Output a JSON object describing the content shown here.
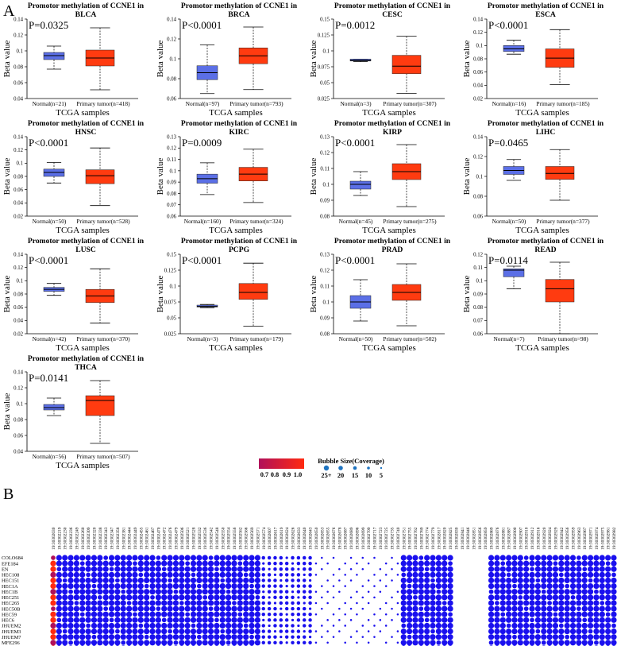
{
  "panel_labels": {
    "a": "A",
    "b": "B"
  },
  "colors": {
    "normal_box": "#5b6fe6",
    "tumor_box": "#ff3b10",
    "axis": "#000000",
    "bubble_low": "#b0105a",
    "bubble_high": "#ff2a10",
    "bubble": "#1a10ee"
  },
  "chart_data": [
    {
      "type": "box",
      "title": "Promotor methylation of CCNE1 in BLCA",
      "title_lines": [
        "Promotor methylation of CCNE1 in",
        "BLCA"
      ],
      "pvalue": "P=0.0325",
      "ylabel": "Beta value",
      "xlabel": "TCGA samples",
      "categories": [
        "Normal(n=21)",
        "Primary tumor(n=418)"
      ],
      "yticks": [
        "0.04",
        "0.06",
        "0.08",
        "0.1",
        "0.12",
        "0.14"
      ],
      "ylim": [
        0.04,
        0.14
      ],
      "boxes": [
        {
          "min": 0.077,
          "q1": 0.089,
          "median": 0.094,
          "q3": 0.098,
          "max": 0.106
        },
        {
          "min": 0.051,
          "q1": 0.081,
          "median": 0.091,
          "q3": 0.101,
          "max": 0.129
        }
      ]
    },
    {
      "type": "box",
      "title": "Promotor methylation of CCNE1 in BRCA",
      "title_lines": [
        "Promotor methylation of CCNE1 in",
        "BRCA"
      ],
      "pvalue": "P<0.0001",
      "ylabel": "Beta value",
      "xlabel": "TCGA samples",
      "categories": [
        "Normal(n=97)",
        "Primary tumor(n=793)"
      ],
      "yticks": [
        "0.06",
        "0.08",
        "0.1",
        "0.12",
        "0.14"
      ],
      "ylim": [
        0.06,
        0.14
      ],
      "boxes": [
        {
          "min": 0.065,
          "q1": 0.079,
          "median": 0.086,
          "q3": 0.093,
          "max": 0.114
        },
        {
          "min": 0.069,
          "q1": 0.095,
          "median": 0.103,
          "q3": 0.111,
          "max": 0.132
        }
      ]
    },
    {
      "type": "box",
      "title": "Promotor methylation of CCNE1 in CESC",
      "title_lines": [
        "Promotor methylation of CCNE1 in",
        "CESC"
      ],
      "pvalue": "P=0.0012",
      "ylabel": "Beta value",
      "xlabel": "TCGA samples",
      "categories": [
        "Normal(n=3)",
        "Primary tumor(n=307)"
      ],
      "yticks": [
        "0.025",
        "0.05",
        "0.075",
        "0.1",
        "0.125",
        "0.15"
      ],
      "ylim": [
        0.025,
        0.15
      ],
      "boxes": [
        {
          "min": 0.083,
          "q1": 0.084,
          "median": 0.085,
          "q3": 0.087,
          "max": 0.087
        },
        {
          "min": 0.033,
          "q1": 0.064,
          "median": 0.076,
          "q3": 0.093,
          "max": 0.123
        }
      ]
    },
    {
      "type": "box",
      "title": "Promotor methylation of CCNE1 in ESCA",
      "title_lines": [
        "Promotor methylation of CCNE1 in",
        "ESCA"
      ],
      "pvalue": "P<0.0001",
      "ylabel": "Beta value",
      "xlabel": "TCGA samples",
      "categories": [
        "Normal(n=16)",
        "Primary tumor(n=185)"
      ],
      "yticks": [
        "0.02",
        "0.04",
        "0.06",
        "0.08",
        "0.1",
        "0.12",
        "0.14"
      ],
      "ylim": [
        0.02,
        0.14
      ],
      "boxes": [
        {
          "min": 0.087,
          "q1": 0.091,
          "median": 0.095,
          "q3": 0.1,
          "max": 0.108
        },
        {
          "min": 0.041,
          "q1": 0.067,
          "median": 0.081,
          "q3": 0.095,
          "max": 0.124
        }
      ]
    },
    {
      "type": "box",
      "title": "Promotor methylation of CCNE1 in HNSC",
      "title_lines": [
        "Promotor methylation of CCNE1 in",
        "HNSC"
      ],
      "pvalue": "P<0.0001",
      "ylabel": "Beta value",
      "xlabel": "TCGA samples",
      "categories": [
        "Normal(n=50)",
        "Primary tumor(n=528)"
      ],
      "yticks": [
        "0.02",
        "0.04",
        "0.06",
        "0.08",
        "0.1",
        "0.12",
        "0.14"
      ],
      "ylim": [
        0.02,
        0.14
      ],
      "boxes": [
        {
          "min": 0.07,
          "q1": 0.08,
          "median": 0.086,
          "q3": 0.091,
          "max": 0.101
        },
        {
          "min": 0.036,
          "q1": 0.069,
          "median": 0.081,
          "q3": 0.09,
          "max": 0.123
        }
      ]
    },
    {
      "type": "box",
      "title": "Promotor methylation of CCNE1 in KIRC",
      "title_lines": [
        "Promotor methylation of CCNE1 in",
        "KIRC"
      ],
      "pvalue": "P=0.0009",
      "ylabel": "Beta value",
      "xlabel": "TCGA samples",
      "categories": [
        "Normal(n=160)",
        "Primary tumor(n=324)"
      ],
      "yticks": [
        "0.06",
        "0.07",
        "0.08",
        "0.09",
        "0.1",
        "0.11",
        "0.12",
        "0.13"
      ],
      "ylim": [
        0.06,
        0.13
      ],
      "boxes": [
        {
          "min": 0.079,
          "q1": 0.089,
          "median": 0.093,
          "q3": 0.097,
          "max": 0.107
        },
        {
          "min": 0.072,
          "q1": 0.091,
          "median": 0.097,
          "q3": 0.103,
          "max": 0.119
        }
      ]
    },
    {
      "type": "box",
      "title": "Promotor methylation of CCNE1 in KIRP",
      "title_lines": [
        "Promotor methylation of CCNE1 in",
        "KIRP"
      ],
      "pvalue": "P<0.0001",
      "ylabel": "Beta value",
      "xlabel": "TCGA samples",
      "categories": [
        "Normal(n=45)",
        "Primary tumor(n=275)"
      ],
      "yticks": [
        "0.08",
        "0.09",
        "0.1",
        "0.11",
        "0.12",
        "0.13"
      ],
      "ylim": [
        0.08,
        0.13
      ],
      "boxes": [
        {
          "min": 0.093,
          "q1": 0.097,
          "median": 0.1,
          "q3": 0.102,
          "max": 0.108
        },
        {
          "min": 0.086,
          "q1": 0.103,
          "median": 0.108,
          "q3": 0.113,
          "max": 0.125
        }
      ]
    },
    {
      "type": "box",
      "title": "Promotor methylation of CCNE1 in LIHC",
      "title_lines": [
        "Promotor methylation of CCNE1 in",
        "LIHC"
      ],
      "pvalue": "P=0.0465",
      "ylabel": "Beta value",
      "xlabel": "TCGA samples",
      "categories": [
        "Normal(n=50)",
        "Primary tumor(n=377)"
      ],
      "yticks": [
        "0.06",
        "0.08",
        "0.1",
        "0.12",
        "0.14"
      ],
      "ylim": [
        0.06,
        0.14
      ],
      "boxes": [
        {
          "min": 0.096,
          "q1": 0.102,
          "median": 0.106,
          "q3": 0.11,
          "max": 0.117
        },
        {
          "min": 0.076,
          "q1": 0.097,
          "median": 0.103,
          "q3": 0.11,
          "max": 0.127
        }
      ]
    },
    {
      "type": "box",
      "title": "Promotor methylation of CCNE1 in LUSC",
      "title_lines": [
        "Promotor methylation of CCNE1 in",
        "LUSC"
      ],
      "pvalue": "P<0.0001",
      "ylabel": "Beta value",
      "xlabel": "TCGA samples",
      "categories": [
        "Normal(n=42)",
        "Primary tumor(n=370)"
      ],
      "yticks": [
        "0.02",
        "0.04",
        "0.06",
        "0.08",
        "0.1",
        "0.12",
        "0.14"
      ],
      "ylim": [
        0.02,
        0.14
      ],
      "boxes": [
        {
          "min": 0.078,
          "q1": 0.084,
          "median": 0.087,
          "q3": 0.09,
          "max": 0.096
        },
        {
          "min": 0.036,
          "q1": 0.067,
          "median": 0.077,
          "q3": 0.087,
          "max": 0.118
        }
      ]
    },
    {
      "type": "box",
      "title": "Promotor methylation of CCNE1 in PCPG",
      "title_lines": [
        "Promotor methylation of CCNE1 in",
        "PCPG"
      ],
      "pvalue": "P<0.0001",
      "ylabel": "Beta value",
      "xlabel": "TCGA samples",
      "categories": [
        "Normal(n=3)",
        "Primary tumor(n=179)"
      ],
      "yticks": [
        "0.025",
        "0.05",
        "0.075",
        "0.1",
        "0.125",
        "0.15"
      ],
      "ylim": [
        0.025,
        0.15
      ],
      "boxes": [
        {
          "min": 0.066,
          "q1": 0.067,
          "median": 0.068,
          "q3": 0.07,
          "max": 0.071
        },
        {
          "min": 0.037,
          "q1": 0.079,
          "median": 0.09,
          "q3": 0.104,
          "max": 0.136
        }
      ]
    },
    {
      "type": "box",
      "title": "Promotor methylation of CCNE1 in PRAD",
      "title_lines": [
        "Promotor methylation of CCNE1 in",
        "PRAD"
      ],
      "pvalue": "P<0.0001",
      "ylabel": "Beta value",
      "xlabel": "TCGA samples",
      "categories": [
        "Normal(n=50)",
        "Primary tumor(n=502)"
      ],
      "yticks": [
        "0.08",
        "0.09",
        "0.1",
        "0.11",
        "0.12",
        "0.13"
      ],
      "ylim": [
        0.08,
        0.13
      ],
      "boxes": [
        {
          "min": 0.088,
          "q1": 0.096,
          "median": 0.1,
          "q3": 0.104,
          "max": 0.114
        },
        {
          "min": 0.085,
          "q1": 0.101,
          "median": 0.106,
          "q3": 0.111,
          "max": 0.124
        }
      ]
    },
    {
      "type": "box",
      "title": "Promotor methylation of CCNE1 in READ",
      "title_lines": [
        "Promotor methylation of CCNE1 in",
        "READ"
      ],
      "pvalue": "P=0.0114",
      "ylabel": "Beta value",
      "xlabel": "TCGA samples",
      "categories": [
        "Normal(n=7)",
        "Primary tumor(n=98)"
      ],
      "yticks": [
        "0.06",
        "0.07",
        "0.08",
        "0.09",
        "0.1",
        "0.11",
        "0.12"
      ],
      "ylim": [
        0.06,
        0.12
      ],
      "boxes": [
        {
          "min": 0.094,
          "q1": 0.103,
          "median": 0.108,
          "q3": 0.109,
          "max": 0.111
        },
        {
          "min": 0.06,
          "q1": 0.084,
          "median": 0.094,
          "q3": 0.101,
          "max": 0.114
        }
      ]
    },
    {
      "type": "box",
      "title": "Promotor methylation of CCNE1 in THCA",
      "title_lines": [
        "Promotor methylation of CCNE1 in",
        "THCA"
      ],
      "pvalue": "P=0.0141",
      "ylabel": "Beta value",
      "xlabel": "TCGA samples",
      "categories": [
        "Normal(n=56)",
        "Primary tumor(n=507)"
      ],
      "yticks": [
        "0.04",
        "0.06",
        "0.08",
        "0.1",
        "0.12",
        "0.14"
      ],
      "ylim": [
        0.04,
        0.14
      ],
      "boxes": [
        {
          "min": 0.085,
          "q1": 0.092,
          "median": 0.095,
          "q3": 0.099,
          "max": 0.107
        },
        {
          "min": 0.05,
          "q1": 0.085,
          "median": 0.104,
          "q3": 0.11,
          "max": 0.129
        }
      ]
    },
    {
      "type": "bubble",
      "rows": [
        "COLO684",
        "EFE184",
        "EN",
        "HEC108",
        "HEC151",
        "HEC1A",
        "HEC1B",
        "HEC251",
        "HEC265",
        "HEC50B",
        "HEC59",
        "HEC6",
        "JHUEM2",
        "JHUEM3",
        "JHUEM7",
        "MFE296",
        "RL952",
        "SNGM"
      ],
      "columns": [
        "19:30302030",
        "19:30302219",
        "19:30302230",
        "19:30302236",
        "19:30302249",
        "19:30302260",
        "19:30302309",
        "19:30302320",
        "19:30302338",
        "19:30302343",
        "19:30302347",
        "19:30302358",
        "19:30302381",
        "19:30302444",
        "19:30302449",
        "19:30302455",
        "19:30302461",
        "19:30302467",
        "19:30302470",
        "19:30302472",
        "19:30302476",
        "19:30302479",
        "19:30302506",
        "19:30302521",
        "19:30302528",
        "19:30302532",
        "19:30302536",
        "19:30302542",
        "19:30302548",
        "19:30302550",
        "19:30302554",
        "19:30302556",
        "19:30302562",
        "19:30302566",
        "19:30302569",
        "19:30302571",
        "19:30302574",
        "19:30302607",
        "19:30302617",
        "19:30302619",
        "19:30302624",
        "19:30302626",
        "19:30302633",
        "19:30302640",
        "19:30302643",
        "19:30302650",
        "19:30302653",
        "19:30302655",
        "19:30302676",
        "19:30302678",
        "19:30302687",
        "19:30302689",
        "19:30302696",
        "19:30302699",
        "19:30302709",
        "19:30302717",
        "19:30302723",
        "19:30302725",
        "19:30302735",
        "19:30302740",
        "19:30302751",
        "19:30302755",
        "19:30302762",
        "19:30302769",
        "19:30302774",
        "19:30302779",
        "19:30302817",
        "19:30302820",
        "19:30302825",
        "19:30302830",
        "19:30302841",
        "19:30302846",
        "19:30302851",
        "19:30302856",
        "19:30302859",
        "19:30302869",
        "19:30302876",
        "19:30302881",
        "19:30302887",
        "19:30302900",
        "19:30302907",
        "19:30302910",
        "19:30302912",
        "19:30302916",
        "19:30302920",
        "19:30302924",
        "19:30302929",
        "19:30302942",
        "19:30302956",
        "19:30302959",
        "19:30302963",
        "19:30302967",
        "19:30302971",
        "19:30302974",
        "19:30302975",
        "19:30302981",
        "19:30302982"
      ],
      "color_legend": {
        "ticks": [
          "0.7",
          "0.8",
          "0.9",
          "1.0"
        ]
      },
      "size_legend": {
        "title": "Bubble Size(Coverage)",
        "ticks": [
          "25+",
          "20",
          "15",
          "10",
          "5"
        ]
      }
    }
  ]
}
